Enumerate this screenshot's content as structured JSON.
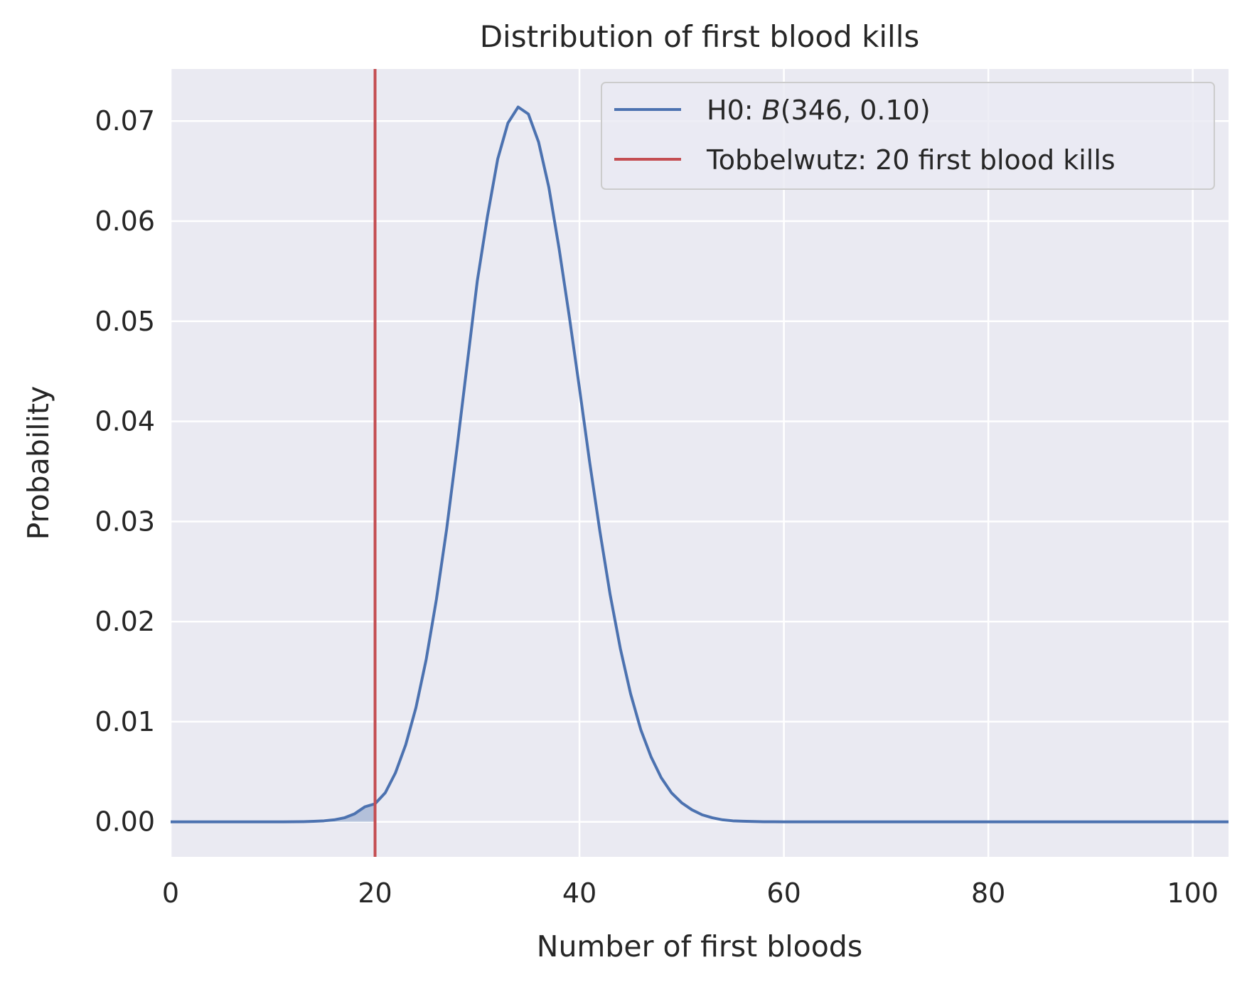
{
  "chart_data": {
    "type": "line",
    "title": "Distribution of first blood kills",
    "xlabel": "Number of first bloods",
    "ylabel": "Probability",
    "xlim": [
      0,
      103.5
    ],
    "ylim": [
      -0.0035,
      0.0752
    ],
    "xticks": [
      0,
      20,
      40,
      60,
      80,
      100
    ],
    "xtick_labels": [
      "0",
      "20",
      "40",
      "60",
      "80",
      "100"
    ],
    "yticks": [
      0.0,
      0.01,
      0.02,
      0.03,
      0.04,
      0.05,
      0.06,
      0.07
    ],
    "ytick_labels": [
      "0.00",
      "0.01",
      "0.02",
      "0.03",
      "0.04",
      "0.05",
      "0.06",
      "0.07"
    ],
    "grid": true,
    "legend_position": "top-right",
    "colors": {
      "h0": "#4c72b0",
      "observed": "#c44e52",
      "background": "#eaeaf2",
      "grid": "#ffffff"
    },
    "series": [
      {
        "name": "H0: B(346, 0.10)",
        "legend_prefix": "H0: ",
        "legend_math": "B",
        "legend_args": "(346, 0.10)",
        "x": [
          0,
          1,
          2,
          3,
          4,
          5,
          6,
          7,
          8,
          9,
          10,
          11,
          12,
          13,
          14,
          15,
          16,
          17,
          18,
          19,
          20,
          21,
          22,
          23,
          24,
          25,
          26,
          27,
          28,
          29,
          30,
          31,
          32,
          33,
          34,
          35,
          36,
          37,
          38,
          39,
          40,
          41,
          42,
          43,
          44,
          45,
          46,
          47,
          48,
          49,
          50,
          51,
          52,
          53,
          54,
          55,
          56,
          57,
          58,
          59,
          60,
          61,
          62,
          63,
          64,
          65,
          66,
          67,
          68,
          69,
          70,
          71,
          72,
          73,
          74,
          75,
          76,
          77,
          78,
          79,
          80,
          81,
          82,
          83,
          84,
          85,
          86,
          87,
          88,
          89,
          90,
          91,
          92,
          93,
          94,
          95,
          96,
          97,
          98,
          99,
          100,
          101,
          102,
          103
        ],
        "values": [
          0,
          0,
          0,
          0,
          0,
          0,
          0,
          0,
          0,
          0,
          0,
          0,
          1e-05,
          2e-05,
          5e-05,
          0.0001,
          0.0002,
          0.0004,
          0.0008,
          0.0015,
          0.0018,
          0.0029,
          0.0049,
          0.0077,
          0.0114,
          0.0162,
          0.0222,
          0.0292,
          0.0372,
          0.0456,
          0.054,
          0.0605,
          0.0662,
          0.0698,
          0.0714,
          0.0707,
          0.0679,
          0.0634,
          0.0573,
          0.0505,
          0.0433,
          0.0359,
          0.029,
          0.0227,
          0.0173,
          0.0128,
          0.0092,
          0.0065,
          0.0044,
          0.0029,
          0.0019,
          0.0012,
          0.0007,
          0.0004,
          0.0002,
          0.0001,
          6e-05,
          3e-05,
          1e-05,
          1e-05,
          0,
          0,
          0,
          0,
          0,
          0,
          0,
          0,
          0,
          0,
          0,
          0,
          0,
          0,
          0,
          0,
          0,
          0,
          0,
          0,
          0,
          0,
          0,
          0,
          0,
          0,
          0,
          0,
          0,
          0,
          0,
          0,
          0,
          0,
          0,
          0,
          0,
          0,
          0,
          0,
          0,
          0,
          0,
          0
        ]
      },
      {
        "name": "Tobbelwutz: 20 first blood kills",
        "type": "vline",
        "x": 20
      }
    ],
    "shaded_region": {
      "x_from": 0,
      "x_to": 20,
      "under_series": 0
    }
  }
}
